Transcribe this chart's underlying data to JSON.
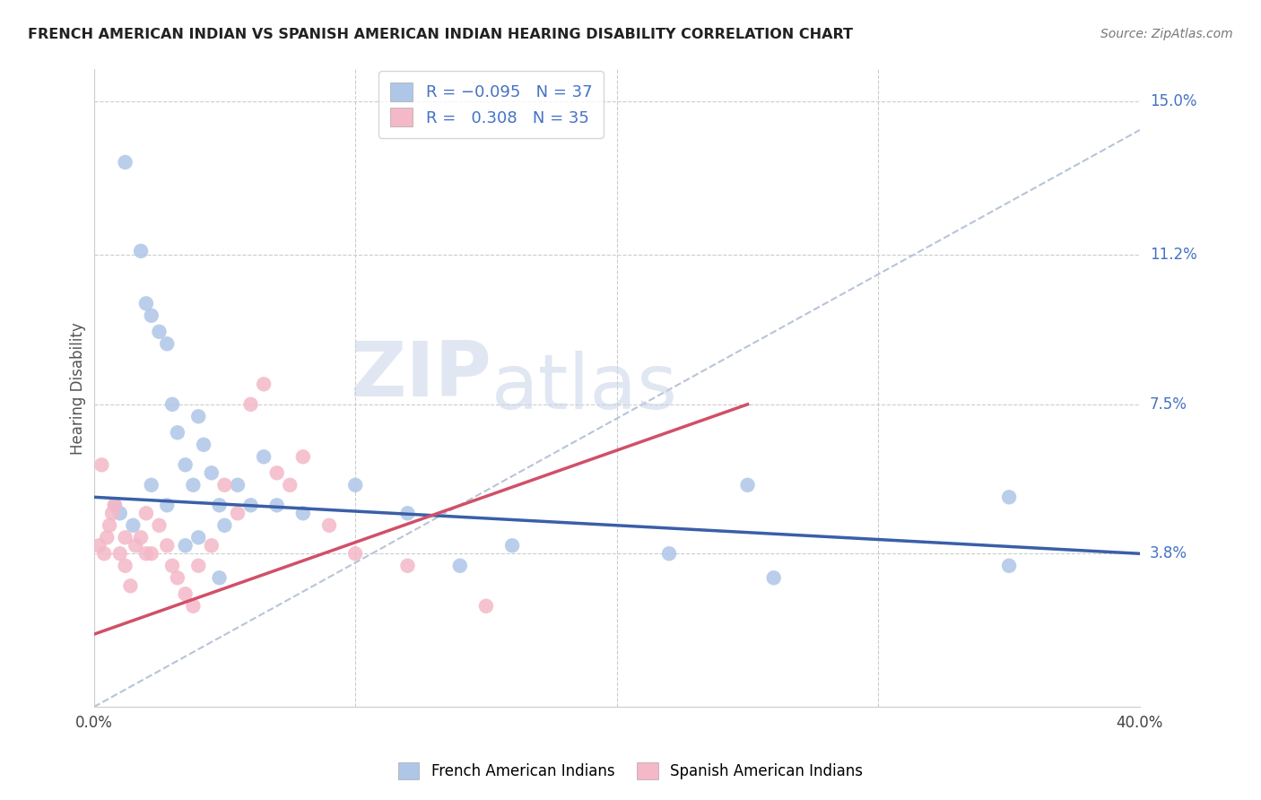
{
  "title": "FRENCH AMERICAN INDIAN VS SPANISH AMERICAN INDIAN HEARING DISABILITY CORRELATION CHART",
  "source": "Source: ZipAtlas.com",
  "ylabel": "Hearing Disability",
  "y_ticks": [
    0.038,
    0.075,
    0.112,
    0.15
  ],
  "y_tick_labels": [
    "3.8%",
    "7.5%",
    "11.2%",
    "15.0%"
  ],
  "xlim": [
    0.0,
    0.4
  ],
  "ylim": [
    0.0,
    0.158
  ],
  "watermark_zip": "ZIP",
  "watermark_atlas": "atlas",
  "blue_scatter_color": "#aec6e8",
  "pink_scatter_color": "#f4b8c8",
  "blue_line_color": "#3a5fa8",
  "pink_line_color": "#d05068",
  "dashed_line_color": "#b8c4d8",
  "french_x": [
    0.012,
    0.018,
    0.02,
    0.022,
    0.025,
    0.028,
    0.03,
    0.032,
    0.035,
    0.038,
    0.04,
    0.042,
    0.045,
    0.048,
    0.05,
    0.055,
    0.06,
    0.065,
    0.07,
    0.08,
    0.1,
    0.12,
    0.14,
    0.16,
    0.22,
    0.26,
    0.35,
    0.008,
    0.01,
    0.015,
    0.022,
    0.028,
    0.035,
    0.04,
    0.048,
    0.25,
    0.35
  ],
  "french_y": [
    0.135,
    0.113,
    0.1,
    0.097,
    0.093,
    0.09,
    0.075,
    0.068,
    0.06,
    0.055,
    0.072,
    0.065,
    0.058,
    0.05,
    0.045,
    0.055,
    0.05,
    0.062,
    0.05,
    0.048,
    0.055,
    0.048,
    0.035,
    0.04,
    0.038,
    0.032,
    0.035,
    0.05,
    0.048,
    0.045,
    0.055,
    0.05,
    0.04,
    0.042,
    0.032,
    0.055,
    0.052
  ],
  "spanish_x": [
    0.002,
    0.004,
    0.005,
    0.006,
    0.008,
    0.01,
    0.012,
    0.014,
    0.016,
    0.018,
    0.02,
    0.022,
    0.025,
    0.028,
    0.03,
    0.032,
    0.035,
    0.038,
    0.04,
    0.045,
    0.05,
    0.055,
    0.06,
    0.065,
    0.07,
    0.075,
    0.08,
    0.09,
    0.1,
    0.12,
    0.15,
    0.003,
    0.007,
    0.012,
    0.02
  ],
  "spanish_y": [
    0.04,
    0.038,
    0.042,
    0.045,
    0.05,
    0.038,
    0.035,
    0.03,
    0.04,
    0.042,
    0.048,
    0.038,
    0.045,
    0.04,
    0.035,
    0.032,
    0.028,
    0.025,
    0.035,
    0.04,
    0.055,
    0.048,
    0.075,
    0.08,
    0.058,
    0.055,
    0.062,
    0.045,
    0.038,
    0.035,
    0.025,
    0.06,
    0.048,
    0.042,
    0.038
  ],
  "blue_line_x0": 0.0,
  "blue_line_y0": 0.052,
  "blue_line_x1": 0.4,
  "blue_line_y1": 0.038,
  "pink_line_x0": 0.0,
  "pink_line_y0": 0.018,
  "pink_line_x1": 0.25,
  "pink_line_y1": 0.075,
  "dashed_line_x0": 0.0,
  "dashed_line_y0": 0.0,
  "dashed_line_x1": 0.4,
  "dashed_line_y1": 0.143
}
